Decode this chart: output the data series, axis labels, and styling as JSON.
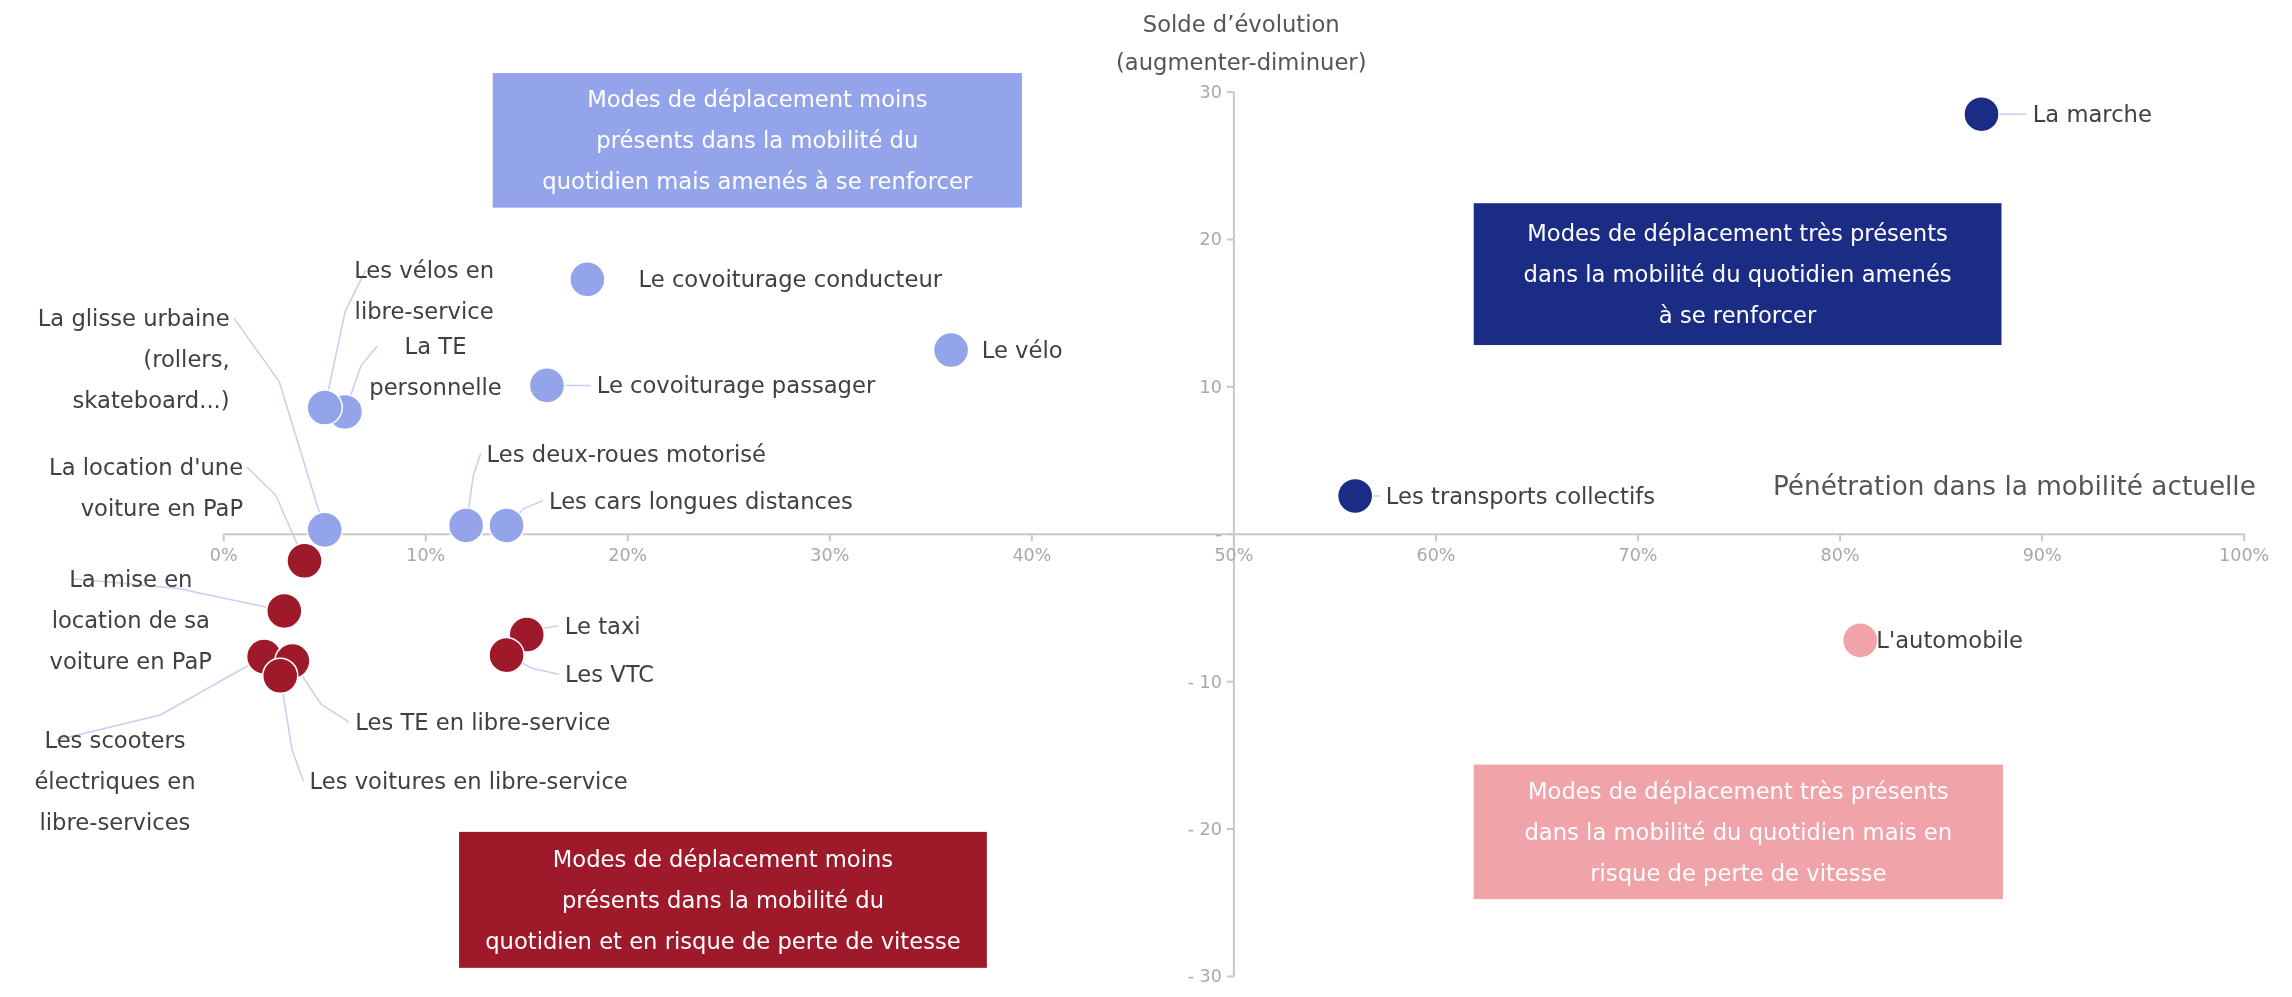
{
  "chart_data": {
    "type": "scatter",
    "xlabel": "Pénétration dans la mobilité actuelle",
    "ylabel": "Solde d’évolution (augmenter-diminuer)",
    "marker": "circle",
    "xlim": [
      0,
      100
    ],
    "ylim": [
      -30,
      30
    ],
    "xticks": [
      {
        "value": 0,
        "label": "0%"
      },
      {
        "value": 10,
        "label": "10%"
      },
      {
        "value": 20,
        "label": "20%"
      },
      {
        "value": 30,
        "label": "30%"
      },
      {
        "value": 40,
        "label": "40%"
      },
      {
        "value": 50,
        "label": "50%"
      },
      {
        "value": 60,
        "label": "60%"
      },
      {
        "value": 70,
        "label": "70%"
      },
      {
        "value": 80,
        "label": "80%"
      },
      {
        "value": 90,
        "label": "90%"
      },
      {
        "value": 100,
        "label": "100%"
      }
    ],
    "yticks": [
      30,
      20,
      10,
      {
        "value": 0,
        "label": "-"
      },
      {
        "value": -10,
        "label": "- 10"
      },
      {
        "value": -20,
        "label": "- 20"
      },
      {
        "value": -30,
        "label": "- 30"
      }
    ],
    "series": [
      {
        "color": "#1b2c85",
        "x": [
          87,
          56
        ],
        "values": [
          28.5,
          2.6
        ]
      },
      {
        "color": "#f0a3a9",
        "x": [
          81
        ],
        "values": [
          -7.2
        ]
      },
      {
        "color": "#94a4ea",
        "x": [
          18,
          36,
          16,
          6,
          5,
          5,
          12,
          14
        ],
        "values": [
          17.3,
          12.5,
          10.1,
          8.3,
          8.6,
          0.3,
          0.6,
          0.6
        ]
      },
      {
        "color": "#9e1a2a",
        "x": [
          4,
          3,
          15,
          14,
          2,
          3.4,
          2.8
        ],
        "values": [
          -1.8,
          -5.2,
          -6.8,
          -8.2,
          -8.3,
          -8.6,
          -9.6
        ]
      }
    ],
    "annotations": [
      "Modes de déplacement moins présents dans la mobilité du quotidien mais amenés à se renforcer",
      "Modes de déplacement très présents dans la mobilité du quotidien amenés à se renforcer",
      "Modes de déplacement moins présents dans la mobilité du quotidien et en risque de perte de vitesse",
      "Modes de déplacement très présents dans la mobilité du quotidien mais en risque de perte de vitesse",
      {
        "text": "La marche",
        "x": 87,
        "y": 28.5
      },
      {
        "text": "Les transports collectifs",
        "x": 56,
        "y": 2.6
      },
      {
        "text": "L'automobile",
        "x": 81,
        "y": -7.2
      },
      {
        "text": "Le covoiturage conducteur",
        "x": 18,
        "y": 17.3
      },
      {
        "text": "Le vélo",
        "x": 36,
        "y": 12.5
      },
      {
        "text": "Le covoiturage passager",
        "x": 16,
        "y": 10.1
      },
      {
        "text": "La TE personnelle",
        "x": 6,
        "y": 8.3
      },
      {
        "text": "Les vélos en libre-service",
        "x": 5,
        "y": 8.6
      },
      {
        "text": "La glisse urbaine (rollers, skateboard...)",
        "x": 5,
        "y": 0.3
      },
      {
        "text": "Les deux-roues motorisé",
        "x": 12,
        "y": 0.6
      },
      {
        "text": "Les cars longues distances",
        "x": 14,
        "y": 0.6
      },
      {
        "text": "La location d'une voiture en PaP",
        "x": 4,
        "y": -1.8
      },
      {
        "text": "La mise en location de sa voiture en PaP",
        "x": 3,
        "y": -5.2
      },
      {
        "text": "Le taxi",
        "x": 15,
        "y": -6.8
      },
      {
        "text": "Les VTC",
        "x": 14,
        "y": -8.2
      },
      {
        "text": "Les scooters électriques en libre-services",
        "x": 2,
        "y": -8.3
      },
      {
        "text": "Les TE en libre-service",
        "x": 3.4,
        "y": -8.6
      },
      {
        "text": "Les voitures en libre-service",
        "x": 2.8,
        "y": -9.6
      }
    ]
  }
}
